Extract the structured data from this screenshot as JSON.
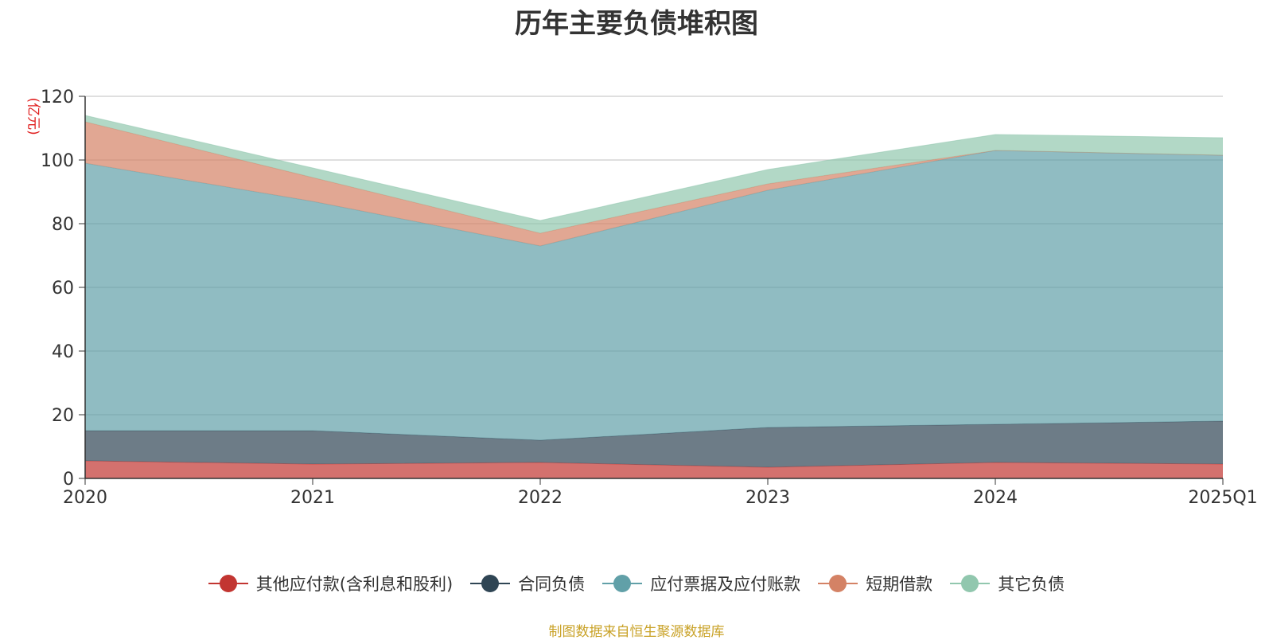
{
  "chart_data": {
    "type": "area",
    "stacked": true,
    "title": "历年主要负债堆积图",
    "y_unit": "(亿元)",
    "categories": [
      "2020",
      "2021",
      "2022",
      "2023",
      "2024",
      "2025Q1"
    ],
    "ylim": [
      0,
      120
    ],
    "yticks": [
      0,
      20,
      40,
      60,
      80,
      100,
      120
    ],
    "grid": true,
    "legend_position": "bottom",
    "series": [
      {
        "name": "其他应付款(含利息和股利)",
        "color": "#c23531",
        "values": [
          5.5,
          4.5,
          5.0,
          3.5,
          5.0,
          4.5
        ]
      },
      {
        "name": "合同负债",
        "color": "#2f4554",
        "values": [
          9.5,
          10.5,
          7.0,
          12.5,
          12.0,
          13.5
        ]
      },
      {
        "name": "应付票据及应付账款",
        "color": "#61a0a8",
        "values": [
          84.0,
          72.0,
          61.0,
          74.5,
          86.0,
          83.5
        ]
      },
      {
        "name": "短期借款",
        "color": "#d48265",
        "values": [
          13.0,
          7.5,
          4.0,
          2.0,
          0.0,
          0.0
        ]
      },
      {
        "name": "其它负债",
        "color": "#91c7ae",
        "values": [
          2.0,
          3.0,
          4.0,
          4.5,
          5.0,
          5.5
        ]
      }
    ]
  },
  "footer": {
    "source_note": "制图数据来自恒生聚源数据库"
  }
}
